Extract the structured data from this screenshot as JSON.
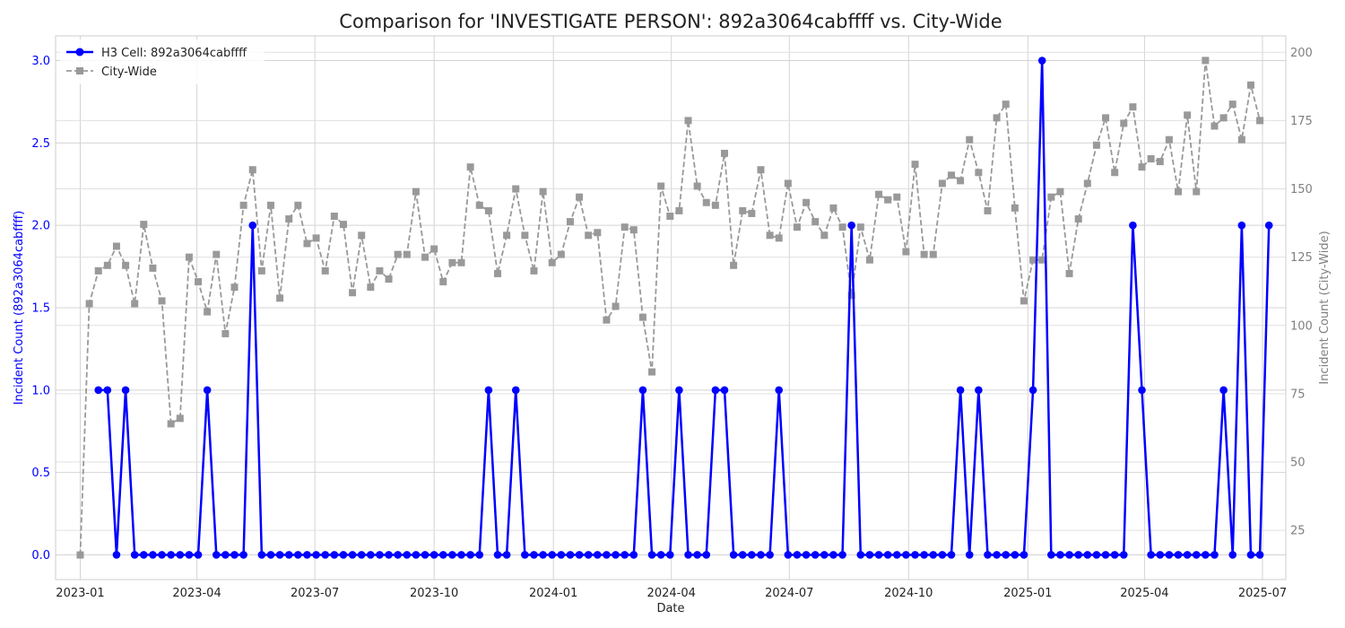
{
  "chart_data": {
    "type": "line",
    "title": "Comparison for 'INVESTIGATE PERSON': 892a3064cabffff vs. City-Wide",
    "xlabel": "Date",
    "ylabel_left": "Incident Count (892a3064cabffff)",
    "ylabel_right": "Incident Count (City-Wide)",
    "x_ticks": [
      "2023-01",
      "2023-04",
      "2023-07",
      "2023-10",
      "2024-01",
      "2024-04",
      "2024-07",
      "2024-10",
      "2025-01",
      "2025-04",
      "2025-07"
    ],
    "y_left_ticks": [
      "0.0",
      "0.5",
      "1.0",
      "1.5",
      "2.0",
      "2.5",
      "3.0"
    ],
    "y_right_ticks": [
      "25",
      "50",
      "75",
      "100",
      "125",
      "150",
      "175",
      "200"
    ],
    "y_left_range": [
      -0.15,
      3.15
    ],
    "y_right_range": [
      7,
      206
    ],
    "x_range": [
      "2022-12-13",
      "2025-07-19"
    ],
    "grid": true,
    "legend_position": "top-left",
    "series": [
      {
        "name": "H3 Cell: 892a3064cabffff",
        "axis": "left",
        "color": "#0000ff",
        "marker": "circle",
        "line_style": "solid",
        "points": [
          [
            "2023-01-15",
            1
          ],
          [
            "2023-01-22",
            1
          ],
          [
            "2023-01-29",
            0
          ],
          [
            "2023-02-05",
            1
          ],
          [
            "2023-02-12",
            0
          ],
          [
            "2023-02-19",
            0
          ],
          [
            "2023-02-26",
            0
          ],
          [
            "2023-03-05",
            0
          ],
          [
            "2023-03-12",
            0
          ],
          [
            "2023-03-19",
            0
          ],
          [
            "2023-03-26",
            0
          ],
          [
            "2023-04-02",
            0
          ],
          [
            "2023-04-09",
            1
          ],
          [
            "2023-04-16",
            0
          ],
          [
            "2023-04-23",
            0
          ],
          [
            "2023-04-30",
            0
          ],
          [
            "2023-05-07",
            0
          ],
          [
            "2023-05-14",
            2
          ],
          [
            "2023-05-21",
            0
          ],
          [
            "2023-05-28",
            0
          ],
          [
            "2023-06-04",
            0
          ],
          [
            "2023-06-11",
            0
          ],
          [
            "2023-06-18",
            0
          ],
          [
            "2023-06-25",
            0
          ],
          [
            "2023-07-02",
            0
          ],
          [
            "2023-07-09",
            0
          ],
          [
            "2023-07-16",
            0
          ],
          [
            "2023-07-23",
            0
          ],
          [
            "2023-07-30",
            0
          ],
          [
            "2023-08-06",
            0
          ],
          [
            "2023-08-13",
            0
          ],
          [
            "2023-08-20",
            0
          ],
          [
            "2023-08-27",
            0
          ],
          [
            "2023-09-03",
            0
          ],
          [
            "2023-09-10",
            0
          ],
          [
            "2023-09-17",
            0
          ],
          [
            "2023-09-24",
            0
          ],
          [
            "2023-10-01",
            0
          ],
          [
            "2023-10-08",
            0
          ],
          [
            "2023-10-15",
            0
          ],
          [
            "2023-10-22",
            0
          ],
          [
            "2023-10-29",
            0
          ],
          [
            "2023-11-05",
            0
          ],
          [
            "2023-11-12",
            1
          ],
          [
            "2023-11-19",
            0
          ],
          [
            "2023-11-26",
            0
          ],
          [
            "2023-12-03",
            1
          ],
          [
            "2023-12-10",
            0
          ],
          [
            "2023-12-17",
            0
          ],
          [
            "2023-12-24",
            0
          ],
          [
            "2023-12-31",
            0
          ],
          [
            "2024-01-07",
            0
          ],
          [
            "2024-01-14",
            0
          ],
          [
            "2024-01-21",
            0
          ],
          [
            "2024-01-28",
            0
          ],
          [
            "2024-02-04",
            0
          ],
          [
            "2024-02-11",
            0
          ],
          [
            "2024-02-18",
            0
          ],
          [
            "2024-02-25",
            0
          ],
          [
            "2024-03-03",
            0
          ],
          [
            "2024-03-10",
            1
          ],
          [
            "2024-03-17",
            0
          ],
          [
            "2024-03-24",
            0
          ],
          [
            "2024-03-31",
            0
          ],
          [
            "2024-04-07",
            1
          ],
          [
            "2024-04-14",
            0
          ],
          [
            "2024-04-21",
            0
          ],
          [
            "2024-04-28",
            0
          ],
          [
            "2024-05-05",
            1
          ],
          [
            "2024-05-12",
            1
          ],
          [
            "2024-05-19",
            0
          ],
          [
            "2024-05-26",
            0
          ],
          [
            "2024-06-02",
            0
          ],
          [
            "2024-06-09",
            0
          ],
          [
            "2024-06-16",
            0
          ],
          [
            "2024-06-23",
            1
          ],
          [
            "2024-06-30",
            0
          ],
          [
            "2024-07-07",
            0
          ],
          [
            "2024-07-14",
            0
          ],
          [
            "2024-07-21",
            0
          ],
          [
            "2024-07-28",
            0
          ],
          [
            "2024-08-04",
            0
          ],
          [
            "2024-08-11",
            0
          ],
          [
            "2024-08-18",
            2
          ],
          [
            "2024-08-25",
            0
          ],
          [
            "2024-09-01",
            0
          ],
          [
            "2024-09-08",
            0
          ],
          [
            "2024-09-15",
            0
          ],
          [
            "2024-09-22",
            0
          ],
          [
            "2024-09-29",
            0
          ],
          [
            "2024-10-06",
            0
          ],
          [
            "2024-10-13",
            0
          ],
          [
            "2024-10-20",
            0
          ],
          [
            "2024-10-27",
            0
          ],
          [
            "2024-11-03",
            0
          ],
          [
            "2024-11-10",
            1
          ],
          [
            "2024-11-17",
            0
          ],
          [
            "2024-11-24",
            1
          ],
          [
            "2024-12-01",
            0
          ],
          [
            "2024-12-08",
            0
          ],
          [
            "2024-12-15",
            0
          ],
          [
            "2024-12-22",
            0
          ],
          [
            "2024-12-29",
            0
          ],
          [
            "2025-01-05",
            1
          ],
          [
            "2025-01-12",
            3
          ],
          [
            "2025-01-19",
            0
          ],
          [
            "2025-01-26",
            0
          ],
          [
            "2025-02-02",
            0
          ],
          [
            "2025-02-09",
            0
          ],
          [
            "2025-02-16",
            0
          ],
          [
            "2025-02-23",
            0
          ],
          [
            "2025-03-02",
            0
          ],
          [
            "2025-03-09",
            0
          ],
          [
            "2025-03-16",
            0
          ],
          [
            "2025-03-23",
            2
          ],
          [
            "2025-03-30",
            1
          ],
          [
            "2025-04-06",
            0
          ],
          [
            "2025-04-13",
            0
          ],
          [
            "2025-04-20",
            0
          ],
          [
            "2025-04-27",
            0
          ],
          [
            "2025-05-04",
            0
          ],
          [
            "2025-05-11",
            0
          ],
          [
            "2025-05-18",
            0
          ],
          [
            "2025-05-25",
            0
          ],
          [
            "2025-06-01",
            1
          ],
          [
            "2025-06-08",
            0
          ],
          [
            "2025-06-15",
            2
          ],
          [
            "2025-06-22",
            0
          ],
          [
            "2025-06-29",
            0
          ],
          [
            "2025-07-06",
            2
          ]
        ]
      },
      {
        "name": "City-Wide",
        "axis": "right",
        "color": "#999999",
        "marker": "square",
        "line_style": "dashed",
        "points": [
          [
            "2023-01-01",
            16
          ],
          [
            "2023-01-08",
            108
          ],
          [
            "2023-01-15",
            120
          ],
          [
            "2023-01-22",
            122
          ],
          [
            "2023-01-29",
            129
          ],
          [
            "2023-02-05",
            122
          ],
          [
            "2023-02-12",
            108
          ],
          [
            "2023-02-19",
            137
          ],
          [
            "2023-02-26",
            121
          ],
          [
            "2023-03-05",
            109
          ],
          [
            "2023-03-12",
            64
          ],
          [
            "2023-03-19",
            66
          ],
          [
            "2023-03-26",
            125
          ],
          [
            "2023-04-02",
            116
          ],
          [
            "2023-04-09",
            105
          ],
          [
            "2023-04-16",
            126
          ],
          [
            "2023-04-23",
            97
          ],
          [
            "2023-04-30",
            114
          ],
          [
            "2023-05-07",
            144
          ],
          [
            "2023-05-14",
            157
          ],
          [
            "2023-05-21",
            120
          ],
          [
            "2023-05-28",
            144
          ],
          [
            "2023-06-04",
            110
          ],
          [
            "2023-06-11",
            139
          ],
          [
            "2023-06-18",
            144
          ],
          [
            "2023-06-25",
            130
          ],
          [
            "2023-07-02",
            132
          ],
          [
            "2023-07-09",
            120
          ],
          [
            "2023-07-16",
            140
          ],
          [
            "2023-07-23",
            137
          ],
          [
            "2023-07-30",
            112
          ],
          [
            "2023-08-06",
            133
          ],
          [
            "2023-08-13",
            114
          ],
          [
            "2023-08-20",
            120
          ],
          [
            "2023-08-27",
            117
          ],
          [
            "2023-09-03",
            126
          ],
          [
            "2023-09-10",
            126
          ],
          [
            "2023-09-17",
            149
          ],
          [
            "2023-09-24",
            125
          ],
          [
            "2023-10-01",
            128
          ],
          [
            "2023-10-08",
            116
          ],
          [
            "2023-10-15",
            123
          ],
          [
            "2023-10-22",
            123
          ],
          [
            "2023-10-29",
            158
          ],
          [
            "2023-11-05",
            144
          ],
          [
            "2023-11-12",
            142
          ],
          [
            "2023-11-19",
            119
          ],
          [
            "2023-11-26",
            133
          ],
          [
            "2023-12-03",
            150
          ],
          [
            "2023-12-10",
            133
          ],
          [
            "2023-12-17",
            120
          ],
          [
            "2023-12-24",
            149
          ],
          [
            "2023-12-31",
            123
          ],
          [
            "2024-01-07",
            126
          ],
          [
            "2024-01-14",
            138
          ],
          [
            "2024-01-21",
            147
          ],
          [
            "2024-01-28",
            133
          ],
          [
            "2024-02-04",
            134
          ],
          [
            "2024-02-11",
            102
          ],
          [
            "2024-02-18",
            107
          ],
          [
            "2024-02-25",
            136
          ],
          [
            "2024-03-03",
            135
          ],
          [
            "2024-03-10",
            103
          ],
          [
            "2024-03-17",
            83
          ],
          [
            "2024-03-24",
            151
          ],
          [
            "2024-03-31",
            140
          ],
          [
            "2024-04-07",
            142
          ],
          [
            "2024-04-14",
            175
          ],
          [
            "2024-04-21",
            151
          ],
          [
            "2024-04-28",
            145
          ],
          [
            "2024-05-05",
            144
          ],
          [
            "2024-05-12",
            163
          ],
          [
            "2024-05-19",
            122
          ],
          [
            "2024-05-26",
            142
          ],
          [
            "2024-06-02",
            141
          ],
          [
            "2024-06-09",
            157
          ],
          [
            "2024-06-16",
            133
          ],
          [
            "2024-06-23",
            132
          ],
          [
            "2024-06-30",
            152
          ],
          [
            "2024-07-07",
            136
          ],
          [
            "2024-07-14",
            145
          ],
          [
            "2024-07-21",
            138
          ],
          [
            "2024-07-28",
            133
          ],
          [
            "2024-08-04",
            143
          ],
          [
            "2024-08-11",
            136
          ],
          [
            "2024-08-18",
            111
          ],
          [
            "2024-08-25",
            136
          ],
          [
            "2024-09-01",
            124
          ],
          [
            "2024-09-08",
            148
          ],
          [
            "2024-09-15",
            146
          ],
          [
            "2024-09-22",
            147
          ],
          [
            "2024-09-29",
            127
          ],
          [
            "2024-10-06",
            159
          ],
          [
            "2024-10-13",
            126
          ],
          [
            "2024-10-20",
            126
          ],
          [
            "2024-10-27",
            152
          ],
          [
            "2024-11-03",
            155
          ],
          [
            "2024-11-10",
            153
          ],
          [
            "2024-11-17",
            168
          ],
          [
            "2024-11-24",
            156
          ],
          [
            "2024-12-01",
            142
          ],
          [
            "2024-12-08",
            176
          ],
          [
            "2024-12-15",
            181
          ],
          [
            "2024-12-22",
            143
          ],
          [
            "2024-12-29",
            109
          ],
          [
            "2025-01-05",
            124
          ],
          [
            "2025-01-12",
            124
          ],
          [
            "2025-01-19",
            147
          ],
          [
            "2025-01-26",
            149
          ],
          [
            "2025-02-02",
            119
          ],
          [
            "2025-02-09",
            139
          ],
          [
            "2025-02-16",
            152
          ],
          [
            "2025-02-23",
            166
          ],
          [
            "2025-03-02",
            176
          ],
          [
            "2025-03-09",
            156
          ],
          [
            "2025-03-16",
            174
          ],
          [
            "2025-03-23",
            180
          ],
          [
            "2025-03-30",
            158
          ],
          [
            "2025-04-06",
            161
          ],
          [
            "2025-04-13",
            160
          ],
          [
            "2025-04-20",
            168
          ],
          [
            "2025-04-27",
            149
          ],
          [
            "2025-05-04",
            177
          ],
          [
            "2025-05-11",
            149
          ],
          [
            "2025-05-18",
            197
          ],
          [
            "2025-05-25",
            173
          ],
          [
            "2025-06-01",
            176
          ],
          [
            "2025-06-08",
            181
          ],
          [
            "2025-06-15",
            168
          ],
          [
            "2025-06-22",
            188
          ],
          [
            "2025-06-29",
            175
          ]
        ]
      }
    ]
  }
}
